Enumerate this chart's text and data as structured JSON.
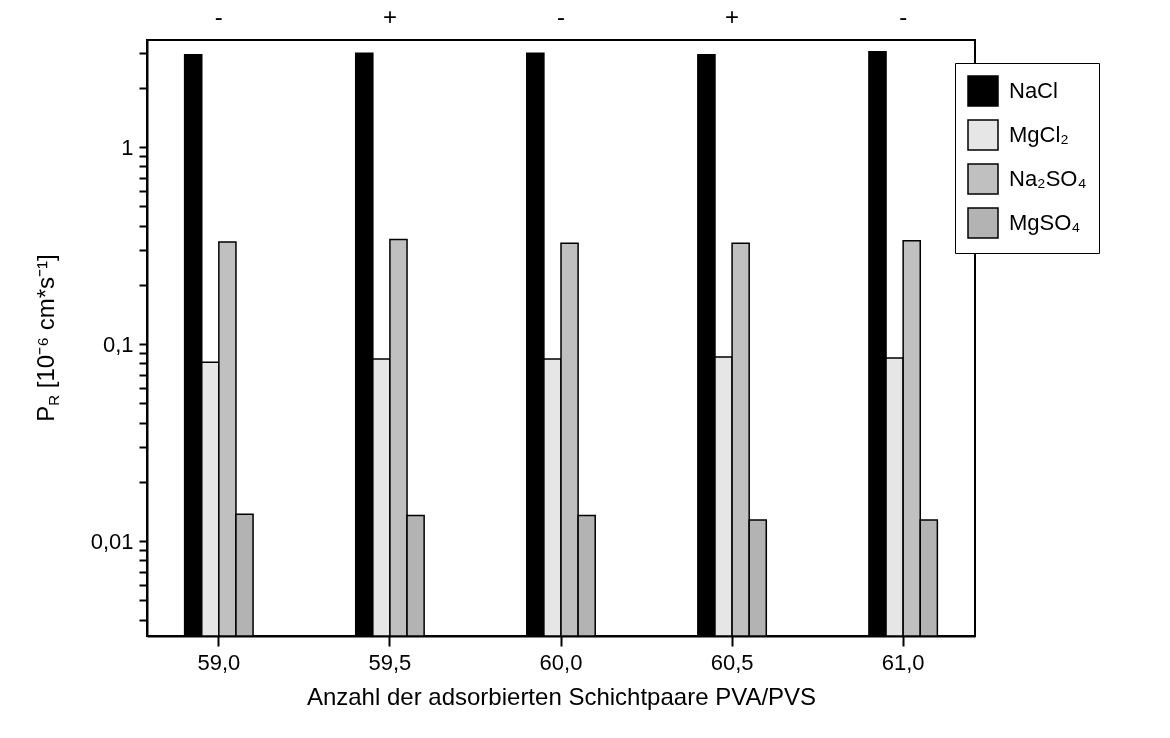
{
  "chart_data": {
    "type": "bar",
    "xlabel": "Anzahl der adsorbierten Schichtpaare PVA/PVS",
    "ylabel": "P$_{R}$ [10⁻⁶ cm*s⁻¹]",
    "categories": [
      "59,0",
      "59,5",
      "60,0",
      "60,5",
      "61,0"
    ],
    "series": [
      {
        "name": "NaCl",
        "color": "#000000",
        "values": [
          2.95,
          3.0,
          3.0,
          2.95,
          3.05
        ]
      },
      {
        "name": "MgCl₂",
        "color": "#e6e6e6",
        "values": [
          0.081,
          0.084,
          0.084,
          0.086,
          0.085
        ]
      },
      {
        "name": "Na₂SO₄",
        "color": "#c0c0c0",
        "values": [
          0.33,
          0.34,
          0.325,
          0.325,
          0.335
        ]
      },
      {
        "name": "MgSO₄",
        "color": "#b3b3b3",
        "values": [
          0.0137,
          0.0135,
          0.0135,
          0.0128,
          0.0128
        ]
      }
    ],
    "log": true,
    "ylim": [
      0.0033,
      3.5
    ],
    "yticks": [
      {
        "value": 0.004,
        "label": null
      },
      {
        "value": 0.005,
        "label": null
      },
      {
        "value": 0.006,
        "label": null
      },
      {
        "value": 0.007,
        "label": null
      },
      {
        "value": 0.008,
        "label": null
      },
      {
        "value": 0.009,
        "label": null
      },
      {
        "value": 0.01,
        "label": "0,01"
      },
      {
        "value": 0.02,
        "label": null
      },
      {
        "value": 0.03,
        "label": null
      },
      {
        "value": 0.04,
        "label": null
      },
      {
        "value": 0.05,
        "label": null
      },
      {
        "value": 0.06,
        "label": null
      },
      {
        "value": 0.07,
        "label": null
      },
      {
        "value": 0.08,
        "label": null
      },
      {
        "value": 0.09,
        "label": null
      },
      {
        "value": 0.1,
        "label": "0,1"
      },
      {
        "value": 0.2,
        "label": null
      },
      {
        "value": 0.3,
        "label": null
      },
      {
        "value": 0.4,
        "label": null
      },
      {
        "value": 0.5,
        "label": null
      },
      {
        "value": 0.6,
        "label": null
      },
      {
        "value": 0.7,
        "label": null
      },
      {
        "value": 0.8,
        "label": null
      },
      {
        "value": 0.9,
        "label": null
      },
      1,
      {
        "value": 2,
        "label": null
      },
      {
        "value": 3,
        "label": null
      }
    ],
    "annotations": [
      "-",
      "+",
      "-",
      "+",
      "-"
    ],
    "legend": "top right",
    "grid": false
  }
}
